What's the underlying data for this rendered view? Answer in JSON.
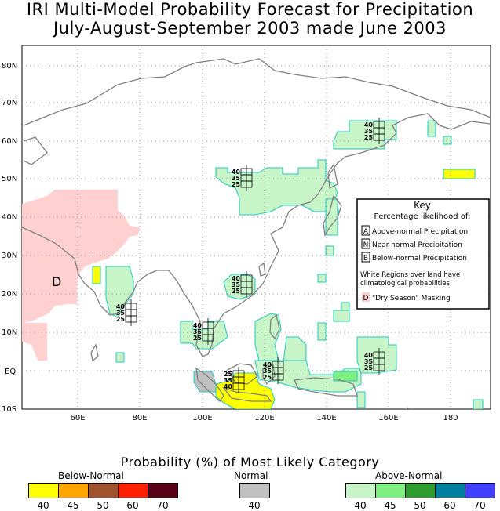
{
  "title": {
    "line1": "IRI Multi-Model Probability Forecast for Precipitation",
    "line2": "July-August-September 2003 made June 2003"
  },
  "axes": {
    "lat_labels": [
      "80N",
      "70N",
      "60N",
      "50N",
      "40N",
      "30N",
      "20N",
      "10N",
      "EQ",
      "10S"
    ],
    "lon_labels": [
      "60E",
      "80E",
      "100E",
      "120E",
      "140E",
      "160E",
      "180"
    ]
  },
  "key": {
    "title": "Key",
    "subtitle": "Percentage likelihood of:",
    "above": {
      "letter": "A",
      "text": "Above-normal Precipitation"
    },
    "near": {
      "letter": "N",
      "text": "Near-normal Precipitation"
    },
    "below": {
      "letter": "B",
      "text": "Below-normal Precipitation"
    },
    "note_line1": "White Regions over land have",
    "note_line2": "climatological probabilities",
    "dry": {
      "letter": "D",
      "text": "\"Dry Season\" Masking"
    }
  },
  "map_labels": {
    "dry_marker": "D",
    "glyph_values": [
      "40",
      "35",
      "25"
    ]
  },
  "legend": {
    "title": "Probability (%) of Most Likely Category",
    "below_label": "Below-Normal",
    "normal_label": "Normal",
    "above_label": "Above-Normal",
    "below_ticks": [
      "40",
      "45",
      "50",
      "60",
      "70"
    ],
    "normal_ticks": [
      "40"
    ],
    "above_ticks": [
      "40",
      "45",
      "50",
      "60",
      "70"
    ]
  },
  "colors": {
    "below": [
      "#ffff00",
      "#ffa500",
      "#a0522d",
      "#ff2000",
      "#5a0018"
    ],
    "normal": [
      "#c0c0c0"
    ],
    "above": [
      "#c8f5c8",
      "#7fef7f",
      "#2e9b2e",
      "#007fa0",
      "#4040ff"
    ],
    "dry": "#ffd0d0",
    "coast": "#808080",
    "grid": "#999999"
  }
}
